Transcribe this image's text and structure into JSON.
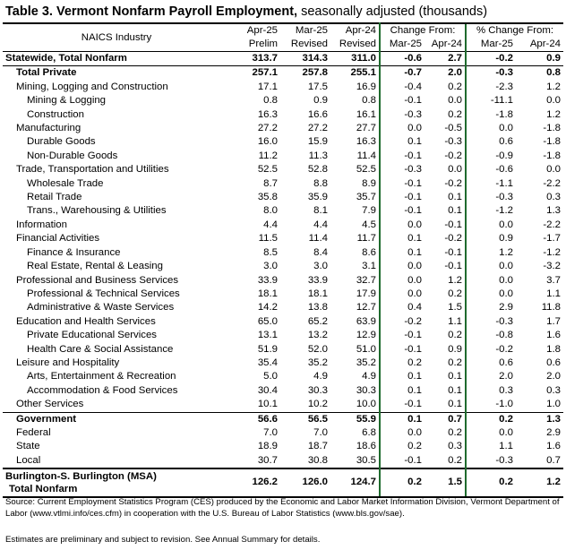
{
  "title_bold": "Table 3.  Vermont Nonfarm Payroll Employment,",
  "title_rest": " seasonally adjusted  (thousands)",
  "header": {
    "industry": "NAICS Industry",
    "apr25_top": "Apr-25",
    "apr25_bot": "Prelim",
    "mar25_top": "Mar-25",
    "mar25_bot": "Revised",
    "apr24_top": "Apr-24",
    "apr24_bot": "Revised",
    "chg_top": "Change From:",
    "chg_mar": "Mar-25",
    "chg_apr": "Apr-24",
    "pct_top": "% Change From:",
    "pct_mar": "Mar-25",
    "pct_apr": "Apr-24"
  },
  "rows": [
    {
      "label": "Statewide, Total Nonfarm",
      "indent": 0,
      "bold": true,
      "v": [
        "313.7",
        "314.3",
        "311.0",
        "-0.6",
        "2.7",
        "-0.2",
        "0.9"
      ]
    },
    {
      "label": "Total Private",
      "indent": 1,
      "bold": true,
      "v": [
        "257.1",
        "257.8",
        "255.1",
        "-0.7",
        "2.0",
        "-0.3",
        "0.8"
      ]
    },
    {
      "label": "Mining, Logging and Construction",
      "indent": 1,
      "bold": false,
      "v": [
        "17.1",
        "17.5",
        "16.9",
        "-0.4",
        "0.2",
        "-2.3",
        "1.2"
      ]
    },
    {
      "label": "Mining & Logging",
      "indent": 2,
      "bold": false,
      "v": [
        "0.8",
        "0.9",
        "0.8",
        "-0.1",
        "0.0",
        "-11.1",
        "0.0"
      ]
    },
    {
      "label": "Construction",
      "indent": 2,
      "bold": false,
      "v": [
        "16.3",
        "16.6",
        "16.1",
        "-0.3",
        "0.2",
        "-1.8",
        "1.2"
      ]
    },
    {
      "label": "Manufacturing",
      "indent": 1,
      "bold": false,
      "v": [
        "27.2",
        "27.2",
        "27.7",
        "0.0",
        "-0.5",
        "0.0",
        "-1.8"
      ]
    },
    {
      "label": "Durable Goods",
      "indent": 2,
      "bold": false,
      "v": [
        "16.0",
        "15.9",
        "16.3",
        "0.1",
        "-0.3",
        "0.6",
        "-1.8"
      ]
    },
    {
      "label": "Non-Durable Goods",
      "indent": 2,
      "bold": false,
      "v": [
        "11.2",
        "11.3",
        "11.4",
        "-0.1",
        "-0.2",
        "-0.9",
        "-1.8"
      ]
    },
    {
      "label": "Trade, Transportation and Utilities",
      "indent": 1,
      "bold": false,
      "v": [
        "52.5",
        "52.8",
        "52.5",
        "-0.3",
        "0.0",
        "-0.6",
        "0.0"
      ]
    },
    {
      "label": "Wholesale Trade",
      "indent": 2,
      "bold": false,
      "v": [
        "8.7",
        "8.8",
        "8.9",
        "-0.1",
        "-0.2",
        "-1.1",
        "-2.2"
      ]
    },
    {
      "label": "Retail Trade",
      "indent": 2,
      "bold": false,
      "v": [
        "35.8",
        "35.9",
        "35.7",
        "-0.1",
        "0.1",
        "-0.3",
        "0.3"
      ]
    },
    {
      "label": "Trans., Warehousing & Utilities",
      "indent": 2,
      "bold": false,
      "v": [
        "8.0",
        "8.1",
        "7.9",
        "-0.1",
        "0.1",
        "-1.2",
        "1.3"
      ]
    },
    {
      "label": "Information",
      "indent": 1,
      "bold": false,
      "v": [
        "4.4",
        "4.4",
        "4.5",
        "0.0",
        "-0.1",
        "0.0",
        "-2.2"
      ]
    },
    {
      "label": "Financial Activities",
      "indent": 1,
      "bold": false,
      "v": [
        "11.5",
        "11.4",
        "11.7",
        "0.1",
        "-0.2",
        "0.9",
        "-1.7"
      ]
    },
    {
      "label": "Finance & Insurance",
      "indent": 2,
      "bold": false,
      "v": [
        "8.5",
        "8.4",
        "8.6",
        "0.1",
        "-0.1",
        "1.2",
        "-1.2"
      ]
    },
    {
      "label": "Real Estate, Rental & Leasing",
      "indent": 2,
      "bold": false,
      "v": [
        "3.0",
        "3.0",
        "3.1",
        "0.0",
        "-0.1",
        "0.0",
        "-3.2"
      ]
    },
    {
      "label": "Professional and Business Services",
      "indent": 1,
      "bold": false,
      "v": [
        "33.9",
        "33.9",
        "32.7",
        "0.0",
        "1.2",
        "0.0",
        "3.7"
      ]
    },
    {
      "label": "Professional & Technical Services",
      "indent": 2,
      "bold": false,
      "v": [
        "18.1",
        "18.1",
        "17.9",
        "0.0",
        "0.2",
        "0.0",
        "1.1"
      ]
    },
    {
      "label": "Administrative & Waste Services",
      "indent": 2,
      "bold": false,
      "v": [
        "14.2",
        "13.8",
        "12.7",
        "0.4",
        "1.5",
        "2.9",
        "11.8"
      ]
    },
    {
      "label": "Education and Health Services",
      "indent": 1,
      "bold": false,
      "v": [
        "65.0",
        "65.2",
        "63.9",
        "-0.2",
        "1.1",
        "-0.3",
        "1.7"
      ]
    },
    {
      "label": "Private Educational Services",
      "indent": 2,
      "bold": false,
      "v": [
        "13.1",
        "13.2",
        "12.9",
        "-0.1",
        "0.2",
        "-0.8",
        "1.6"
      ]
    },
    {
      "label": "Health Care & Social Assistance",
      "indent": 2,
      "bold": false,
      "v": [
        "51.9",
        "52.0",
        "51.0",
        "-0.1",
        "0.9",
        "-0.2",
        "1.8"
      ]
    },
    {
      "label": "Leisure and Hospitality",
      "indent": 1,
      "bold": false,
      "v": [
        "35.4",
        "35.2",
        "35.2",
        "0.2",
        "0.2",
        "0.6",
        "0.6"
      ]
    },
    {
      "label": "Arts, Entertainment & Recreation",
      "indent": 2,
      "bold": false,
      "v": [
        "5.0",
        "4.9",
        "4.9",
        "0.1",
        "0.1",
        "2.0",
        "2.0"
      ]
    },
    {
      "label": "Accommodation & Food Services",
      "indent": 2,
      "bold": false,
      "v": [
        "30.4",
        "30.3",
        "30.3",
        "0.1",
        "0.1",
        "0.3",
        "0.3"
      ]
    },
    {
      "label": "Other Services",
      "indent": 1,
      "bold": false,
      "v": [
        "10.1",
        "10.2",
        "10.0",
        "-0.1",
        "0.1",
        "-1.0",
        "1.0"
      ]
    },
    {
      "label": "Government",
      "indent": 1,
      "bold": true,
      "v": [
        "56.6",
        "56.5",
        "55.9",
        "0.1",
        "0.7",
        "0.2",
        "1.3"
      ]
    },
    {
      "label": "Federal",
      "indent": 1,
      "bold": false,
      "v": [
        "7.0",
        "7.0",
        "6.8",
        "0.0",
        "0.2",
        "0.0",
        "2.9"
      ]
    },
    {
      "label": "State",
      "indent": 1,
      "bold": false,
      "v": [
        "18.9",
        "18.7",
        "18.6",
        "0.2",
        "0.3",
        "1.1",
        "1.6"
      ]
    },
    {
      "label": "Local",
      "indent": 1,
      "bold": false,
      "v": [
        "30.7",
        "30.8",
        "30.5",
        "-0.1",
        "0.2",
        "-0.3",
        "0.7"
      ]
    }
  ],
  "msa": {
    "label1": "Burlington-S. Burlington (MSA)",
    "label2": "Total Nonfarm",
    "v": [
      "126.2",
      "126.0",
      "124.7",
      "0.2",
      "1.5",
      "0.2",
      "1.2"
    ]
  },
  "source": "Source: Current Employment Statistics Program (CES) produced by the Economic and Labor Market Information Division, Vermont Department of Labor (www.vtlmi.info/ces.cfm) in cooperation with the U.S. Bureau of Labor Statistics (www.bls.gov/sae).",
  "estimates_note": "Estimates are preliminary and subject to revision. See Annual Summary for details."
}
